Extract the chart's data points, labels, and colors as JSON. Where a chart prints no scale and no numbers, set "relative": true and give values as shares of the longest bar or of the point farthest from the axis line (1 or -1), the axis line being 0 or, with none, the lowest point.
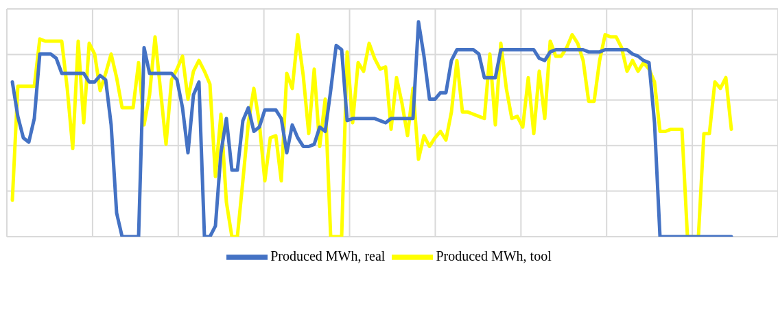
{
  "chart_data": {
    "type": "line",
    "relative": true,
    "grid": true,
    "legend": "bottom",
    "marker": "none",
    "line_style": "solid",
    "categories": [
      null,
      null,
      null,
      null,
      null,
      null,
      null,
      null,
      null,
      null,
      null,
      null,
      null,
      null,
      null,
      null,
      null,
      null,
      null,
      null,
      null,
      null,
      null,
      null,
      null,
      null,
      null,
      null,
      null,
      null,
      null,
      null,
      null,
      null,
      null,
      null,
      null,
      null,
      null,
      null,
      null,
      null,
      null,
      null,
      null,
      null,
      null,
      null,
      null,
      null,
      null,
      null,
      null,
      null,
      null,
      null,
      null,
      null,
      null,
      null,
      null,
      null,
      null,
      null,
      null,
      null,
      null,
      null,
      null,
      null,
      null,
      null,
      null,
      null,
      null,
      null,
      null,
      null,
      null,
      null,
      null,
      null,
      null,
      null,
      null,
      null,
      null,
      null,
      null,
      null,
      null,
      null,
      null,
      null,
      null,
      null,
      null,
      null,
      null,
      null,
      null,
      null,
      null,
      null,
      null,
      null,
      null,
      null,
      null,
      null,
      null,
      null,
      null,
      null,
      null,
      null,
      null,
      null,
      null,
      null,
      null,
      null,
      null,
      null,
      null,
      null,
      null,
      null,
      null,
      null,
      null,
      null
    ],
    "series": [
      {
        "name": "Produced MWh, tool",
        "color": "#ffff00",
        "values": [
          0.17,
          0.7,
          0.7,
          0.7,
          0.7,
          0.92,
          0.91,
          0.91,
          0.91,
          0.91,
          0.69,
          0.41,
          0.91,
          0.53,
          0.9,
          0.85,
          0.68,
          0.76,
          0.85,
          0.74,
          0.6,
          0.6,
          0.6,
          0.81,
          0.52,
          0.66,
          0.93,
          0.68,
          0.43,
          0.73,
          0.78,
          0.84,
          0.64,
          0.77,
          0.82,
          0.77,
          0.71,
          0.28,
          0.57,
          0.16,
          0,
          0,
          0.26,
          0.53,
          0.69,
          0.53,
          0.26,
          0.46,
          0.47,
          0.26,
          0.76,
          0.69,
          0.94,
          0.75,
          0.48,
          0.78,
          0.42,
          0.64,
          0,
          0,
          0,
          0.86,
          0.53,
          0.81,
          0.77,
          0.9,
          0.83,
          0.78,
          0.79,
          0.5,
          0.74,
          0.62,
          0.47,
          0.69,
          0.36,
          0.47,
          0.42,
          0.46,
          0.49,
          0.45,
          0.58,
          0.82,
          0.58,
          0.58,
          0.57,
          0.56,
          0.55,
          0.85,
          0.52,
          0.9,
          0.69,
          0.55,
          0.56,
          0.51,
          0.74,
          0.48,
          0.77,
          0.55,
          0.91,
          0.84,
          0.84,
          0.88,
          0.94,
          0.9,
          0.82,
          0.63,
          0.63,
          0.82,
          0.94,
          0.93,
          0.93,
          0.88,
          0.77,
          0.82,
          0.77,
          0.81,
          0.78,
          0.72,
          0.49,
          0.49,
          0.5,
          0.5,
          0.5,
          0,
          0,
          0,
          0.48,
          0.48,
          0.72,
          0.69,
          0.74,
          0.5
        ]
      },
      {
        "name": "Produced MWh, real",
        "color": "#4472c4",
        "values": [
          0.72,
          0.56,
          0.46,
          0.44,
          0.55,
          0.85,
          0.85,
          0.85,
          0.83,
          0.76,
          0.76,
          0.76,
          0.76,
          0.76,
          0.72,
          0.72,
          0.75,
          0.73,
          0.52,
          0.11,
          0,
          0,
          0,
          0,
          0.88,
          0.76,
          0.76,
          0.76,
          0.76,
          0.76,
          0.73,
          0.6,
          0.39,
          0.66,
          0.72,
          0,
          0,
          0.05,
          0.39,
          0.55,
          0.31,
          0.31,
          0.54,
          0.6,
          0.49,
          0.51,
          0.59,
          0.59,
          0.59,
          0.55,
          0.39,
          0.52,
          0.46,
          0.42,
          0.42,
          0.43,
          0.51,
          0.49,
          0.68,
          0.89,
          0.87,
          0.54,
          0.55,
          0.55,
          0.55,
          0.55,
          0.55,
          0.54,
          0.53,
          0.55,
          0.55,
          0.55,
          0.55,
          0.55,
          1,
          0.84,
          0.64,
          0.64,
          0.67,
          0.67,
          0.82,
          0.87,
          0.87,
          0.87,
          0.87,
          0.85,
          0.74,
          0.74,
          0.74,
          0.87,
          0.87,
          0.87,
          0.87,
          0.87,
          0.87,
          0.87,
          0.83,
          0.82,
          0.86,
          0.87,
          0.87,
          0.87,
          0.87,
          0.87,
          0.87,
          0.86,
          0.86,
          0.86,
          0.87,
          0.87,
          0.87,
          0.87,
          0.87,
          0.85,
          0.84,
          0.82,
          0.81,
          0.53,
          0,
          0,
          0,
          0,
          0,
          0,
          0,
          0,
          0,
          0,
          0,
          0,
          0,
          0
        ]
      }
    ]
  }
}
